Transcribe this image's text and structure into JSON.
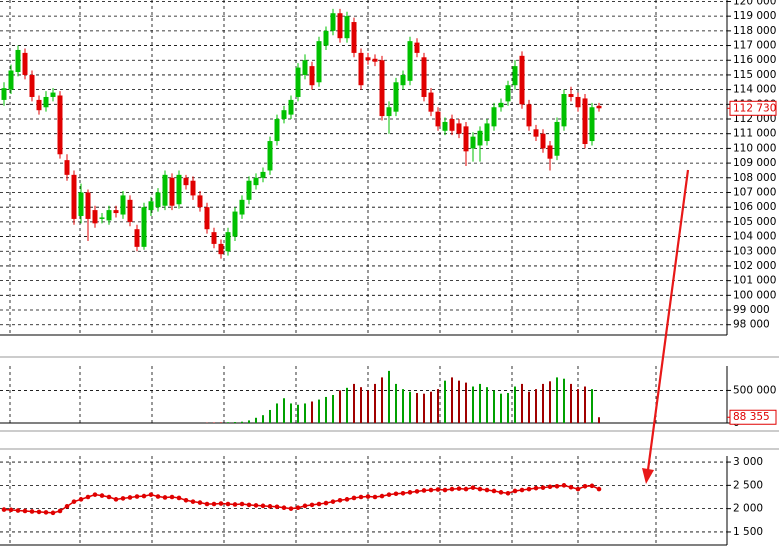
{
  "chart_data": [
    {
      "type": "candlestick",
      "up_color": "#00c000",
      "down_color": "#e00000",
      "grid": true,
      "ylim": [
        97300,
        120100
      ],
      "yticks": [
        {
          "value": 98000,
          "label": "98 000"
        },
        {
          "value": 99000,
          "label": "99 000"
        },
        {
          "value": 100000,
          "label": "100 000"
        },
        {
          "value": 101000,
          "label": "101 000"
        },
        {
          "value": 102000,
          "label": "102 000"
        },
        {
          "value": 103000,
          "label": "103 000"
        },
        {
          "value": 104000,
          "label": "104 000"
        },
        {
          "value": 105000,
          "label": "105 000"
        },
        {
          "value": 106000,
          "label": "106 000"
        },
        {
          "value": 107000,
          "label": "107 000"
        },
        {
          "value": 108000,
          "label": "108 000"
        },
        {
          "value": 109000,
          "label": "109 000"
        },
        {
          "value": 110000,
          "label": "110 000"
        },
        {
          "value": 111000,
          "label": "111 000"
        },
        {
          "value": 112000,
          "label": "112 000"
        },
        {
          "value": 113000,
          "label": "113 000"
        },
        {
          "value": 114000,
          "label": "114 000"
        },
        {
          "value": 115000,
          "label": "115 000"
        },
        {
          "value": 116000,
          "label": "116 000"
        },
        {
          "value": 117000,
          "label": "117 000"
        },
        {
          "value": 118000,
          "label": "118 000"
        },
        {
          "value": 119000,
          "label": "119 000"
        },
        {
          "value": 120000,
          "label": "120 000"
        }
      ],
      "last": {
        "value": 112730,
        "label": "112 730"
      },
      "open": [
        113300,
        114000,
        115200,
        116500,
        115000,
        113300,
        112800,
        113500,
        113600,
        109200,
        108200,
        105400,
        107000,
        105800,
        105200,
        105100,
        105800,
        105500,
        106500,
        104500,
        103300,
        105800,
        106000,
        106100,
        108000,
        106200,
        108000,
        107800,
        106800,
        106000,
        104300,
        103500,
        103000,
        104000,
        105500,
        106500,
        107500,
        108000,
        108500,
        110500,
        112000,
        112300,
        113500,
        115000,
        115600,
        114500,
        117000,
        118000,
        119200,
        117500,
        118600,
        116500,
        116200,
        116100,
        116000,
        112200,
        112500,
        114300,
        114600,
        117200,
        116200,
        113800,
        112500,
        111200,
        112000,
        111700,
        111500,
        110000,
        110200,
        110500,
        111500,
        112800,
        113200,
        114300,
        116300,
        113000,
        111300,
        111000,
        110200,
        109500,
        111500,
        113700,
        113500,
        113400,
        110500,
        112900
      ],
      "high": [
        114500,
        115700,
        117000,
        116800,
        115300,
        113600,
        113900,
        114100,
        113900,
        109600,
        108500,
        107600,
        107200,
        106100,
        105600,
        106100,
        106100,
        107100,
        106800,
        104800,
        106300,
        106700,
        107300,
        108500,
        108300,
        108500,
        108200,
        108100,
        107100,
        106300,
        104600,
        103800,
        104600,
        106000,
        106800,
        108100,
        108300,
        108700,
        110800,
        112300,
        112900,
        113600,
        115800,
        116400,
        115900,
        117600,
        118300,
        119500,
        119500,
        119300,
        118900,
        116800,
        116500,
        116400,
        116300,
        113200,
        114800,
        115300,
        117600,
        117500,
        116500,
        114100,
        112800,
        112100,
        112300,
        112000,
        111800,
        111100,
        111500,
        112000,
        113100,
        113400,
        114600,
        116000,
        116600,
        113300,
        111600,
        111300,
        110500,
        112100,
        114000,
        114200,
        113800,
        113700,
        113100,
        113100
      ],
      "low": [
        112900,
        113700,
        114900,
        114700,
        113200,
        112300,
        112500,
        113200,
        109300,
        107800,
        104800,
        104900,
        103700,
        104600,
        104900,
        104800,
        105300,
        105200,
        104700,
        103000,
        103100,
        105400,
        105700,
        105800,
        105800,
        105900,
        107200,
        106500,
        105700,
        104200,
        103200,
        102500,
        102700,
        103700,
        105200,
        106200,
        107200,
        107700,
        108200,
        110200,
        111700,
        112000,
        113200,
        114700,
        114000,
        114200,
        116700,
        117700,
        117200,
        117200,
        116200,
        114000,
        115700,
        115600,
        111900,
        111000,
        112200,
        114000,
        114300,
        116200,
        113200,
        112200,
        111200,
        110900,
        110900,
        110700,
        108800,
        109100,
        109100,
        110200,
        111200,
        112500,
        112900,
        114000,
        112700,
        111200,
        110500,
        109700,
        108500,
        109200,
        111200,
        113200,
        112500,
        110000,
        110200,
        112500
      ],
      "close": [
        114100,
        115300,
        116700,
        115000,
        113500,
        112600,
        113500,
        113800,
        109600,
        108200,
        105200,
        107000,
        105200,
        104900,
        105300,
        105800,
        105600,
        106800,
        105000,
        103300,
        106000,
        106400,
        107000,
        108200,
        106100,
        108200,
        107500,
        106800,
        106000,
        104500,
        103500,
        102800,
        104300,
        105700,
        106500,
        107800,
        108000,
        108400,
        110500,
        112000,
        112600,
        113300,
        115500,
        116000,
        114300,
        117300,
        118000,
        119200,
        117500,
        119000,
        116500,
        114300,
        116000,
        115900,
        112200,
        112800,
        114500,
        115000,
        117300,
        116500,
        113500,
        112500,
        111500,
        111800,
        111200,
        111000,
        109800,
        110800,
        111200,
        111700,
        112800,
        113100,
        114300,
        115600,
        113000,
        111500,
        110800,
        110000,
        109300,
        111800,
        113700,
        113500,
        112800,
        110300,
        112800,
        112730
      ]
    },
    {
      "type": "bar",
      "up_color": "#00a000",
      "down_color": "#a00000",
      "grid": true,
      "ylim": [
        0,
        875000
      ],
      "yticks": [
        0,
        {
          "value": 500000,
          "label": "500 000"
        }
      ],
      "last": {
        "value": 88355,
        "label": "88 355"
      },
      "values": [
        0,
        0,
        0,
        0,
        0,
        0,
        0,
        0,
        0,
        0,
        0,
        0,
        0,
        0,
        0,
        0,
        0,
        0,
        0,
        0,
        0,
        0,
        0,
        0,
        0,
        0,
        0,
        0,
        0,
        5000,
        8000,
        10000,
        12000,
        15000,
        20000,
        40000,
        80000,
        120000,
        200000,
        300000,
        380000,
        300000,
        280000,
        300000,
        330000,
        360000,
        400000,
        430000,
        500000,
        540000,
        600000,
        550000,
        500000,
        600000,
        700000,
        800000,
        600000,
        520000,
        480000,
        460000,
        450000,
        480000,
        520000,
        650000,
        700000,
        650000,
        620000,
        560000,
        600000,
        550000,
        500000,
        450000,
        460000,
        560000,
        600000,
        480000,
        520000,
        600000,
        640000,
        700000,
        680000,
        600000,
        520000,
        560000,
        520000,
        88355
      ]
    },
    {
      "type": "line",
      "color": "#e00000",
      "grid": true,
      "ylim": [
        1220,
        3130
      ],
      "yticks": [
        {
          "value": 1500,
          "label": "1 500"
        },
        {
          "value": 2000,
          "label": "2 000"
        },
        {
          "value": 2500,
          "label": "2 500"
        },
        {
          "value": 3000,
          "label": "3 000"
        }
      ],
      "values": [
        1980,
        1975,
        1960,
        1950,
        1940,
        1930,
        1920,
        1910,
        1950,
        2050,
        2150,
        2200,
        2250,
        2300,
        2280,
        2250,
        2200,
        2220,
        2240,
        2260,
        2270,
        2300,
        2260,
        2240,
        2250,
        2230,
        2180,
        2150,
        2130,
        2100,
        2100,
        2110,
        2100,
        2090,
        2100,
        2080,
        2070,
        2060,
        2050,
        2040,
        2020,
        2000,
        2020,
        2060,
        2080,
        2100,
        2120,
        2150,
        2180,
        2200,
        2230,
        2250,
        2260,
        2250,
        2270,
        2300,
        2320,
        2330,
        2350,
        2370,
        2390,
        2400,
        2410,
        2400,
        2420,
        2430,
        2420,
        2450,
        2420,
        2400,
        2380,
        2350,
        2330,
        2380,
        2400,
        2420,
        2440,
        2450,
        2470,
        2480,
        2500,
        2460,
        2420,
        2480,
        2490,
        2420
      ]
    }
  ]
}
